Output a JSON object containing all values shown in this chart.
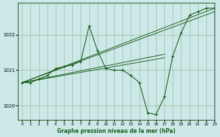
{
  "background_color": "#cce8e8",
  "grid_color": "#99bb99",
  "line_color": "#1a5c1a",
  "title": "Graphe pression niveau de la mer (hPa)",
  "xlim": [
    -0.5,
    23
  ],
  "ylim": [
    1019.6,
    1022.9
  ],
  "yticks": [
    1020,
    1021,
    1022
  ],
  "xticks": [
    0,
    1,
    2,
    3,
    4,
    5,
    6,
    7,
    8,
    9,
    10,
    11,
    12,
    13,
    14,
    15,
    16,
    17,
    18,
    19,
    20,
    21,
    22,
    23
  ],
  "main_series": [
    1020.65,
    1020.65,
    1020.75,
    1020.85,
    1021.05,
    1021.1,
    1021.15,
    1021.25,
    1022.25,
    1021.55,
    1021.05,
    1021.0,
    1021.0,
    1020.85,
    1020.65,
    1019.8,
    1019.75,
    1020.25,
    1021.4,
    1022.05,
    1022.55,
    1022.65,
    1022.75,
    1022.75
  ],
  "trend_lines": [
    {
      "x": [
        0,
        23
      ],
      "y": [
        1020.65,
        1022.75
      ]
    },
    {
      "x": [
        0,
        23
      ],
      "y": [
        1020.65,
        1022.65
      ]
    },
    {
      "x": [
        0,
        17
      ],
      "y": [
        1020.65,
        1021.45
      ]
    },
    {
      "x": [
        0,
        17
      ],
      "y": [
        1020.65,
        1021.35
      ]
    }
  ]
}
